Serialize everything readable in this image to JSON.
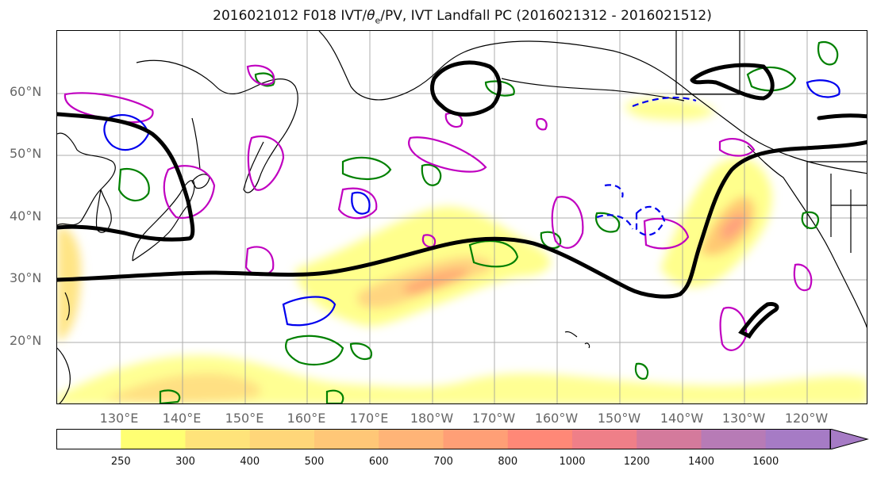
{
  "title": {
    "prefix": "2016021012 F018 IVT/",
    "theta": "θ",
    "theta_sub": "e",
    "suffix": "/PV, IVT Landfall PC (2016021312 - 2016021512)"
  },
  "latitude_labels": [
    "60°N",
    "50°N",
    "40°N",
    "30°N",
    "20°N"
  ],
  "longitude_labels": [
    "130°E",
    "140°E",
    "150°E",
    "160°E",
    "170°E",
    "180°W",
    "170°W",
    "160°W",
    "150°W",
    "140°W",
    "130°W",
    "120°W"
  ],
  "colorbar": {
    "levels": [
      "250",
      "300",
      "400",
      "500",
      "600",
      "700",
      "800",
      "1000",
      "1200",
      "1400",
      "1600"
    ],
    "colors": [
      "#ffffff",
      "#ffff73",
      "#ffe37a",
      "#ffd679",
      "#ffc777",
      "#ffb477",
      "#ff9f76",
      "#ff8877",
      "#ef7f88",
      "#d47a9c",
      "#b77bb6",
      "#a67bc5"
    ],
    "extend": "max"
  },
  "legend_colors": {
    "ivt_fill": "#ffd679",
    "pv_contour": "#008000",
    "theta_e_positive": "#c000c0",
    "theta_e_negative": "#0000ee",
    "landfall_pc": "#000000",
    "coastline": "#000000"
  },
  "map": {
    "projection": "equirectangular",
    "lon_range": [
      "120°E",
      "115°W"
    ],
    "lat_range": [
      "10°N",
      "70°N"
    ],
    "grid": true
  }
}
